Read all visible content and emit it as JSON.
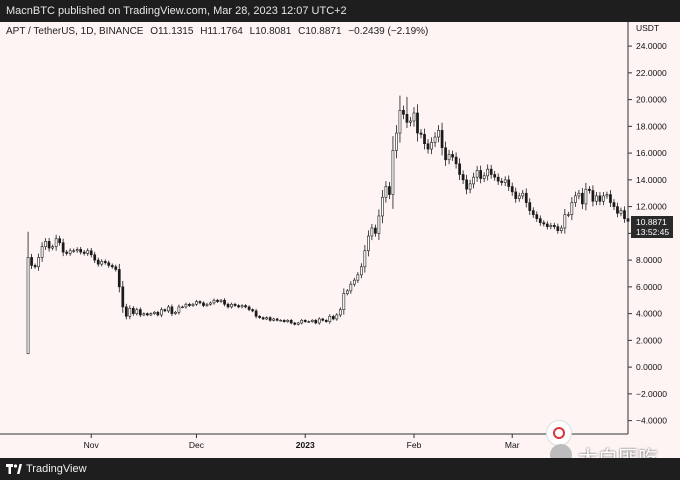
{
  "header": {
    "publish_line": "MacnBTC published on TradingView.com, Mar 28, 2023 12:07 UTC+2"
  },
  "legend": {
    "symbol": "APT / TetherUS, 1D, BINANCE",
    "open": "O11.1315",
    "high": "H11.1764",
    "low": "L10.8081",
    "close": "C10.8871",
    "change": "−0.2439 (−2.19%)"
  },
  "price_tag": {
    "price": "10.8871",
    "countdown": "13:52:45"
  },
  "footer": {
    "brand": "TradingView"
  },
  "watermark": {
    "text": "大白匪吃"
  },
  "colors": {
    "background": "#fdf4f3",
    "candle_stroke": "#1a1a1a",
    "candle_up_fill": "#ffffff",
    "candle_down_fill": "#1a1a1a",
    "price_tag_bg": "#2a2a2a",
    "toolbar_bg": "#1e1e1e"
  },
  "chart_data": {
    "type": "candlestick",
    "currency_label": "USDT",
    "y_ticks": [
      "24.0000",
      "22.0000",
      "20.0000",
      "18.0000",
      "16.0000",
      "14.0000",
      "12.0000",
      "10.0000",
      "8.0000",
      "6.0000",
      "4.0000",
      "2.0000",
      "0.0000",
      "−2.0000",
      "−4.0000"
    ],
    "y_tick_values": [
      24,
      22,
      20,
      18,
      16,
      14,
      12,
      10,
      8,
      6,
      4,
      2,
      0,
      -2,
      -4
    ],
    "x_ticks": [
      {
        "label": "Nov",
        "day": 18
      },
      {
        "label": "Dec",
        "day": 48
      },
      {
        "label": "2023",
        "day": 79
      },
      {
        "label": "Feb",
        "day": 110
      },
      {
        "label": "Mar",
        "day": 138
      }
    ],
    "ylim": [
      -5,
      25.8
    ],
    "xlim": [
      -8,
      171
    ],
    "grid": false,
    "first_day": 0,
    "close_series": [
      8.2,
      7.6,
      7.5,
      8.2,
      9.0,
      9.4,
      8.9,
      9.0,
      9.6,
      9.3,
      8.6,
      8.5,
      8.7,
      8.7,
      8.8,
      8.6,
      8.5,
      8.7,
      8.4,
      8.0,
      7.7,
      7.9,
      7.8,
      7.6,
      7.5,
      7.3,
      6.0,
      4.5,
      3.8,
      4.4,
      4.0,
      4.3,
      3.9,
      4.0,
      3.9,
      4.0,
      4.1,
      3.9,
      4.3,
      4.2,
      4.5,
      4.0,
      4.1,
      4.5,
      4.5,
      4.7,
      4.6,
      4.7,
      4.9,
      4.8,
      4.6,
      4.7,
      4.8,
      5.0,
      4.9,
      5.0,
      4.7,
      4.5,
      4.7,
      4.6,
      4.5,
      4.6,
      4.5,
      4.3,
      4.2,
      3.8,
      3.7,
      3.6,
      3.7,
      3.5,
      3.6,
      3.5,
      3.5,
      3.4,
      3.5,
      3.3,
      3.2,
      3.3,
      3.5,
      3.4,
      3.4,
      3.5,
      3.3,
      3.6,
      3.5,
      3.4,
      3.8,
      3.6,
      3.9,
      4.3,
      5.5,
      5.7,
      6.2,
      6.5,
      6.9,
      7.5,
      8.7,
      9.8,
      10.4,
      10.0,
      11.3,
      12.7,
      13.5,
      12.9,
      16.2,
      17.5,
      19.2,
      18.9,
      18.3,
      18.4,
      19.0,
      17.5,
      17.4,
      16.7,
      16.3,
      16.8,
      17.2,
      17.7,
      16.4,
      15.5,
      15.9,
      15.7,
      15.2,
      14.4,
      14.0,
      13.3,
      13.7,
      14.2,
      14.7,
      14.1,
      14.3,
      14.8,
      14.4,
      14.2,
      13.9,
      13.8,
      14.0,
      13.5,
      13.1,
      12.6,
      12.8,
      13.0,
      12.3,
      11.7,
      11.4,
      11.1,
      10.8,
      10.7,
      10.5,
      10.6,
      10.5,
      10.2,
      10.4,
      11.4,
      11.4,
      12.3,
      12.8,
      13.0,
      12.2,
      13.3,
      13.2,
      12.4,
      12.8,
      12.4,
      12.8,
      12.9,
      12.3,
      12.0,
      11.5,
      11.7,
      11.1,
      10.9
    ]
  }
}
